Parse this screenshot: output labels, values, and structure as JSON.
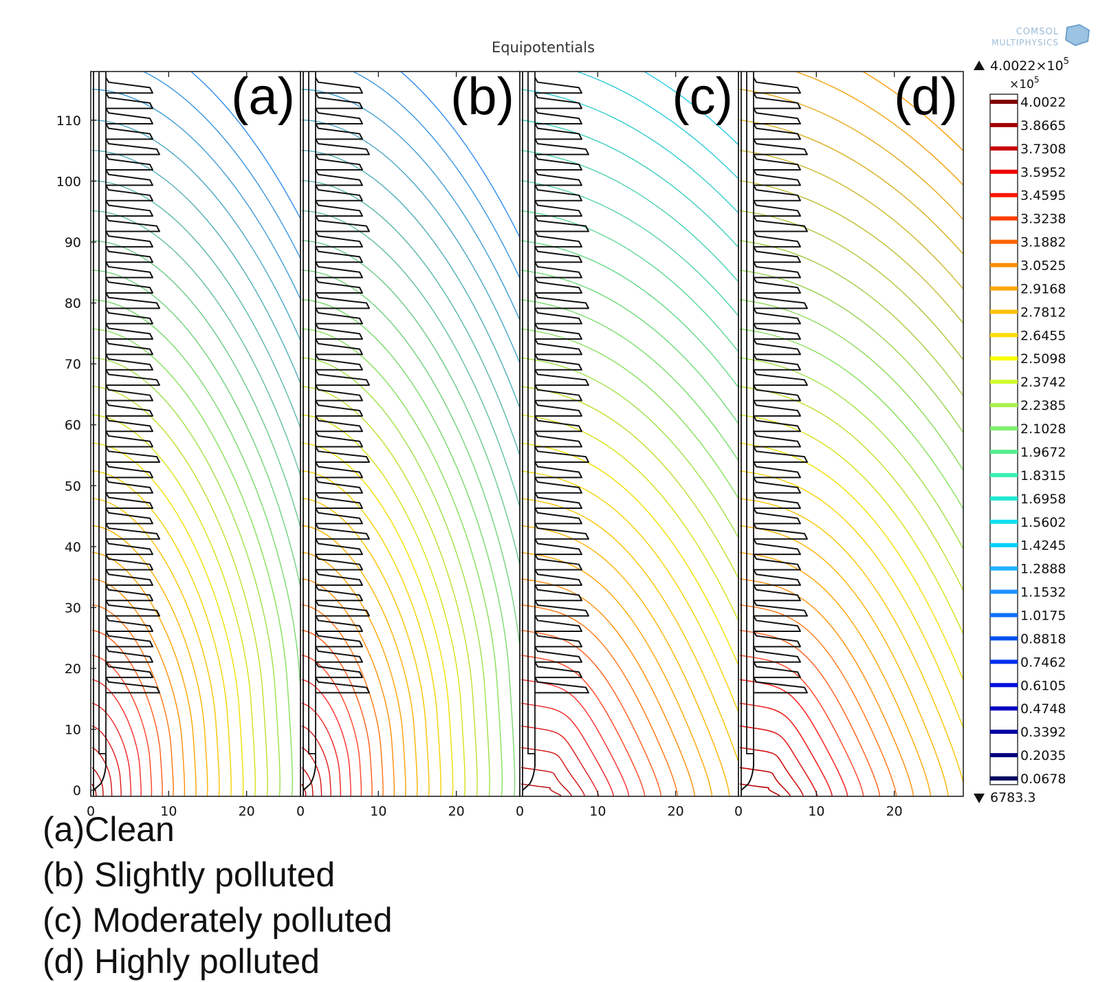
{
  "title": "Equipotentials",
  "logo": {
    "line1": "COMSOL",
    "line2": "MULTIPHYSICS"
  },
  "panels": [
    {
      "label": "(a)",
      "polluted": false,
      "n_lines": 29,
      "outer_color": "#2f8cf0",
      "end_color": "#2f8cf0"
    },
    {
      "label": "(b)",
      "polluted": false,
      "n_lines": 29,
      "outer_color": "#2f8cf0",
      "end_color": "#2f8cf0"
    },
    {
      "label": "(c)",
      "polluted": true,
      "n_lines": 29,
      "outer_color": "#20c8e6",
      "end_color": "#20d8e8"
    },
    {
      "label": "(d)",
      "polluted": true,
      "n_lines": 29,
      "outer_color": "#ff9a00",
      "end_color": "#20d8e8"
    }
  ],
  "chart_data": {
    "type": "contour",
    "title": "Equipotentials",
    "xlim": [
      0,
      27
    ],
    "ylim": [
      -1,
      118
    ],
    "x_ticks": [
      "0",
      "10",
      "20"
    ],
    "y_ticks": [
      "0",
      "10",
      "20",
      "30",
      "40",
      "50",
      "60",
      "70",
      "80",
      "90",
      "100",
      "110"
    ],
    "colorbar": {
      "max_label": "4.0022×10",
      "max_exp": "5",
      "scale_label": "×10",
      "scale_exp": "5",
      "min_label": "6783.3",
      "levels": [
        "4.0022",
        "3.8665",
        "3.7308",
        "3.5952",
        "3.4595",
        "3.3238",
        "3.1882",
        "3.0525",
        "2.9168",
        "2.7812",
        "2.6455",
        "2.5098",
        "2.3742",
        "2.2385",
        "2.1028",
        "1.9672",
        "1.8315",
        "1.6958",
        "1.5602",
        "1.4245",
        "1.2888",
        "1.1532",
        "1.0175",
        "0.8818",
        "0.7462",
        "0.6105",
        "0.4748",
        "0.3392",
        "0.2035",
        "0.0678"
      ],
      "colors": [
        "#7f0000",
        "#a30000",
        "#c80000",
        "#ee0000",
        "#ff1400",
        "#ff3c00",
        "#ff6400",
        "#ff8c00",
        "#ffa500",
        "#ffc000",
        "#ffdc00",
        "#f8ff00",
        "#d0ff30",
        "#a8f050",
        "#80ee70",
        "#58ee90",
        "#38f0b0",
        "#20e8d0",
        "#10e0f0",
        "#00d0ff",
        "#20b0ff",
        "#2090ff",
        "#1070f8",
        "#0050f0",
        "#0030f0",
        "#0010e0",
        "#0000c0",
        "#0000a0",
        "#000080",
        "#000060"
      ]
    }
  },
  "caption": [
    "(a)Clean",
    "(b) Slightly polluted",
    "(c) Moderately polluted",
    "(d) Highly polluted"
  ]
}
